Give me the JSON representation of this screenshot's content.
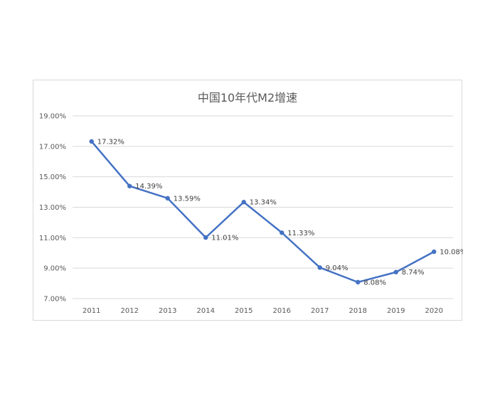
{
  "chart_data": {
    "type": "line",
    "title": "中国10年代M2增速",
    "xlabel": "",
    "ylabel": "",
    "categories": [
      "2011",
      "2012",
      "2013",
      "2014",
      "2015",
      "2016",
      "2017",
      "2018",
      "2019",
      "2020"
    ],
    "series": [
      {
        "values": [
          17.32,
          14.39,
          13.59,
          11.01,
          13.34,
          11.33,
          9.04,
          8.08,
          8.74,
          10.08
        ],
        "color": "#4472c4",
        "data_labels": [
          "17.32%",
          "14.39%",
          "13.59%",
          "11.01%",
          "13.34%",
          "11.33%",
          "9.04%",
          "8.08%",
          "8.74%",
          "10.08%"
        ]
      }
    ],
    "ylim": [
      7,
      19
    ],
    "yticks": [
      7,
      9,
      11,
      13,
      15,
      17,
      19
    ],
    "ytick_labels": [
      "7.00%",
      "9.00%",
      "11.00%",
      "13.00%",
      "15.00%",
      "17.00%",
      "19.00%"
    ],
    "grid": true,
    "legend": "none"
  }
}
